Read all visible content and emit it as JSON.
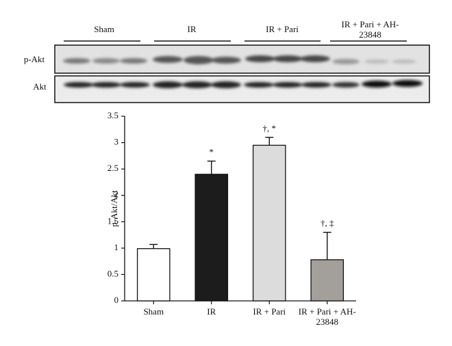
{
  "blot": {
    "row_labels": [
      "p-Akt",
      "Akt"
    ],
    "group_labels": [
      "Sham",
      "IR",
      "IR + Pari",
      "IR + Pari + AH-23848"
    ]
  },
  "chart_data": {
    "type": "bar",
    "y_label": "p-Akt/Akt",
    "categories": [
      "Sham",
      "IR",
      "IR + Pari",
      "IR + Pari + AH-23848"
    ],
    "values": [
      0.99,
      2.4,
      2.95,
      0.78
    ],
    "errors": [
      0.08,
      0.25,
      0.15,
      0.52
    ],
    "colors": [
      "#ffffff",
      "#1c1c1c",
      "#dcdcdc",
      "#a39f9b"
    ],
    "annotations": [
      null,
      "*",
      "†, *",
      "†, ‡"
    ],
    "ylim": [
      0,
      3.5
    ],
    "yticks": [
      0,
      0.5,
      1,
      1.5,
      2,
      2.5,
      3,
      3.5
    ]
  }
}
